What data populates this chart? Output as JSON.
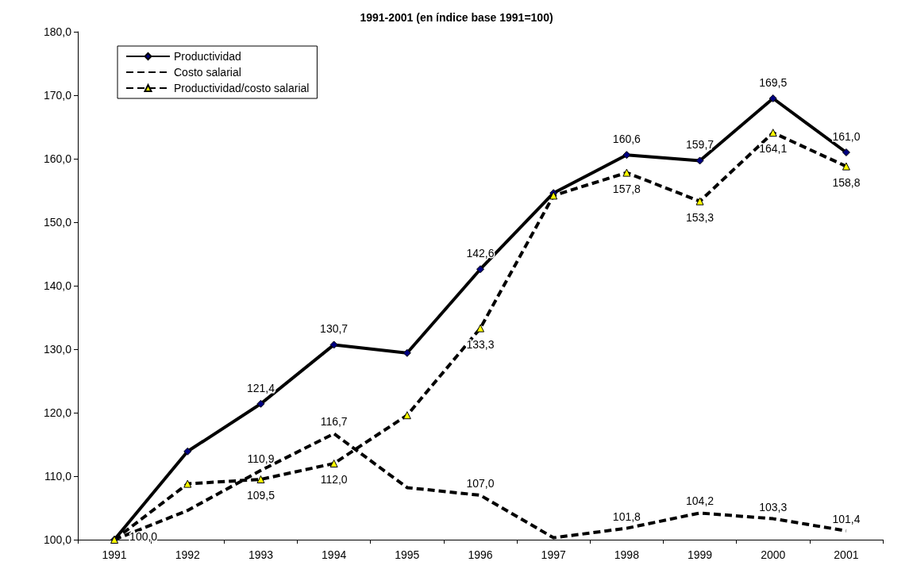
{
  "chart_data": {
    "type": "line",
    "title": "1991-2001 (en índice base 1991=100)",
    "categories": [
      "1991",
      "1992",
      "1993",
      "1994",
      "1995",
      "1996",
      "1997",
      "1998",
      "1999",
      "2000",
      "2001"
    ],
    "series": [
      {
        "name": "Productividad",
        "color": "#000080",
        "marker": "diamond",
        "line_style": "solid",
        "values": [
          100.0,
          113.9,
          121.4,
          130.7,
          129.4,
          142.6,
          154.6,
          160.6,
          159.7,
          169.5,
          161.0
        ],
        "value_labels": [
          "100,0",
          null,
          "121,4",
          "130,7",
          null,
          "142,6",
          null,
          "160,6",
          "159,7",
          "169,5",
          "161,0"
        ]
      },
      {
        "name": "Costo salarial",
        "color": "#000000",
        "marker": "none",
        "line_style": "dashed",
        "values": [
          100.0,
          104.6,
          110.9,
          116.7,
          108.2,
          107.0,
          100.3,
          101.8,
          104.2,
          103.3,
          101.4
        ],
        "value_labels": [
          null,
          null,
          "110,9",
          "116,7",
          null,
          "107,0",
          null,
          "101,8",
          "104,2",
          "103,3",
          "101,4"
        ]
      },
      {
        "name": "Productividad/costo salarial",
        "color": "#ffff00",
        "marker": "triangle",
        "line_style": "dashed",
        "values": [
          100.0,
          108.8,
          109.5,
          112.0,
          119.6,
          133.3,
          154.2,
          157.8,
          153.3,
          164.1,
          158.8
        ],
        "value_labels": [
          null,
          null,
          "109,5",
          "112,0",
          null,
          "133,3",
          null,
          "157,8",
          "153,3",
          "164,1",
          "158,8"
        ]
      }
    ],
    "ylim": [
      100,
      180
    ],
    "yticks": [
      {
        "value": 100,
        "label": "100,0"
      },
      {
        "value": 110,
        "label": "110,0"
      },
      {
        "value": 120,
        "label": "120,0"
      },
      {
        "value": 130,
        "label": "130,0"
      },
      {
        "value": 140,
        "label": "140,0"
      },
      {
        "value": 150,
        "label": "150,0"
      },
      {
        "value": 160,
        "label": "160,0"
      },
      {
        "value": 170,
        "label": "170,0"
      },
      {
        "value": 180,
        "label": "180,0"
      }
    ],
    "grid": false,
    "legend": "top left"
  }
}
